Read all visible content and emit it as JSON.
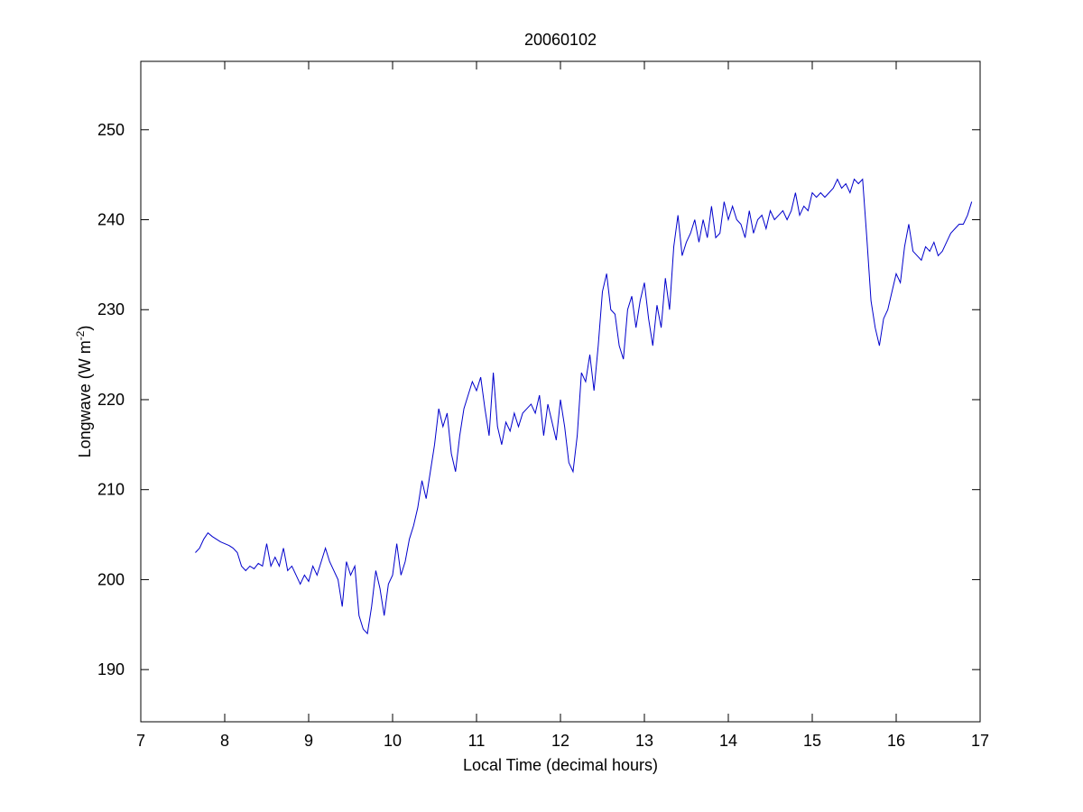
{
  "chart_data": {
    "type": "line",
    "title": "20060102",
    "xlabel": "Local Time (decimal hours)",
    "ylabel": {
      "text": "Longwave (W m",
      "superscript": "-2",
      "suffix": ")"
    },
    "xlim": [
      7,
      17
    ],
    "xticks": [
      7,
      8,
      9,
      10,
      11,
      12,
      13,
      14,
      15,
      16,
      17
    ],
    "ylim": [
      184.2,
      257.6
    ],
    "yticks": [
      190,
      200,
      210,
      220,
      230,
      240,
      250
    ],
    "grid": false,
    "x": [
      7.65,
      7.7,
      7.75,
      7.8,
      7.85,
      7.9,
      7.95,
      8.0,
      8.05,
      8.1,
      8.15,
      8.2,
      8.25,
      8.3,
      8.35,
      8.4,
      8.45,
      8.5,
      8.55,
      8.6,
      8.65,
      8.7,
      8.75,
      8.8,
      8.85,
      8.9,
      8.95,
      9.0,
      9.05,
      9.1,
      9.15,
      9.2,
      9.25,
      9.3,
      9.35,
      9.4,
      9.45,
      9.5,
      9.55,
      9.6,
      9.65,
      9.7,
      9.75,
      9.8,
      9.85,
      9.9,
      9.95,
      10.0,
      10.05,
      10.1,
      10.15,
      10.2,
      10.25,
      10.3,
      10.35,
      10.4,
      10.45,
      10.5,
      10.55,
      10.6,
      10.65,
      10.7,
      10.75,
      10.8,
      10.85,
      10.9,
      10.95,
      11.0,
      11.05,
      11.1,
      11.15,
      11.2,
      11.25,
      11.3,
      11.35,
      11.4,
      11.45,
      11.5,
      11.55,
      11.6,
      11.65,
      11.7,
      11.75,
      11.8,
      11.85,
      11.9,
      11.95,
      12.0,
      12.05,
      12.1,
      12.15,
      12.2,
      12.25,
      12.3,
      12.35,
      12.4,
      12.45,
      12.5,
      12.55,
      12.6,
      12.65,
      12.7,
      12.75,
      12.8,
      12.85,
      12.9,
      12.95,
      13.0,
      13.05,
      13.1,
      13.15,
      13.2,
      13.25,
      13.3,
      13.35,
      13.4,
      13.45,
      13.5,
      13.55,
      13.6,
      13.65,
      13.7,
      13.75,
      13.8,
      13.85,
      13.9,
      13.95,
      14.0,
      14.05,
      14.1,
      14.15,
      14.2,
      14.25,
      14.3,
      14.35,
      14.4,
      14.45,
      14.5,
      14.55,
      14.6,
      14.65,
      14.7,
      14.75,
      14.8,
      14.85,
      14.9,
      14.95,
      15.0,
      15.05,
      15.1,
      15.15,
      15.2,
      15.25,
      15.3,
      15.35,
      15.4,
      15.45,
      15.5,
      15.55,
      15.6,
      15.65,
      15.7,
      15.75,
      15.8,
      15.85,
      15.9,
      15.95,
      16.0,
      16.05,
      16.1,
      16.15,
      16.2,
      16.25,
      16.3,
      16.35,
      16.4,
      16.45,
      16.5,
      16.55,
      16.6,
      16.65,
      16.7,
      16.75,
      16.8,
      16.85,
      16.9
    ],
    "series": [
      {
        "color": "#0000cc",
        "values": [
          203,
          203.5,
          204.5,
          205.2,
          204.8,
          204.5,
          204.2,
          204,
          203.8,
          203.5,
          203,
          201.5,
          201,
          201.5,
          201.2,
          201.8,
          201.5,
          204,
          201.5,
          202.5,
          201.5,
          203.5,
          201,
          201.5,
          200.5,
          199.5,
          200.5,
          199.8,
          201.5,
          200.5,
          202,
          203.5,
          202,
          201,
          200,
          197,
          202,
          200.5,
          201.5,
          196,
          194.5,
          194,
          197,
          201,
          199,
          196,
          199.5,
          200.5,
          204,
          200.5,
          202,
          204.5,
          206,
          208,
          211,
          209,
          212,
          215,
          219,
          217,
          218.5,
          214,
          212,
          216,
          219,
          220.5,
          222,
          221,
          222.5,
          219,
          216,
          223,
          217,
          215,
          217.5,
          216.5,
          218.5,
          217,
          218.5,
          219,
          219.5,
          218.5,
          220.5,
          216,
          219.5,
          217.5,
          215.5,
          220,
          217,
          213,
          212,
          216,
          223,
          222,
          225,
          221,
          226,
          232,
          234,
          230,
          229.5,
          226,
          224.5,
          230,
          231.5,
          228,
          231,
          233,
          229,
          226,
          230.5,
          228,
          233.5,
          230,
          237,
          240.5,
          236,
          237.5,
          238.5,
          240,
          237.5,
          240,
          238,
          241.5,
          238,
          238.5,
          242,
          240,
          241.5,
          240,
          239.5,
          238,
          241,
          238.5,
          240,
          240.5,
          239,
          241,
          240,
          240.5,
          241,
          240,
          241,
          243,
          240.5,
          241.5,
          241,
          243,
          242.5,
          243,
          242.5,
          243,
          243.5,
          244.5,
          243.5,
          244,
          243,
          244.5,
          244,
          244.5,
          238,
          231,
          228,
          226,
          229,
          230,
          232,
          234,
          233,
          237,
          239.5,
          236.5,
          236,
          235.5,
          237,
          236.5,
          237.5,
          236,
          236.5,
          237.5,
          238.5,
          239,
          239.5,
          239.5,
          240.5,
          242
        ]
      }
    ]
  }
}
